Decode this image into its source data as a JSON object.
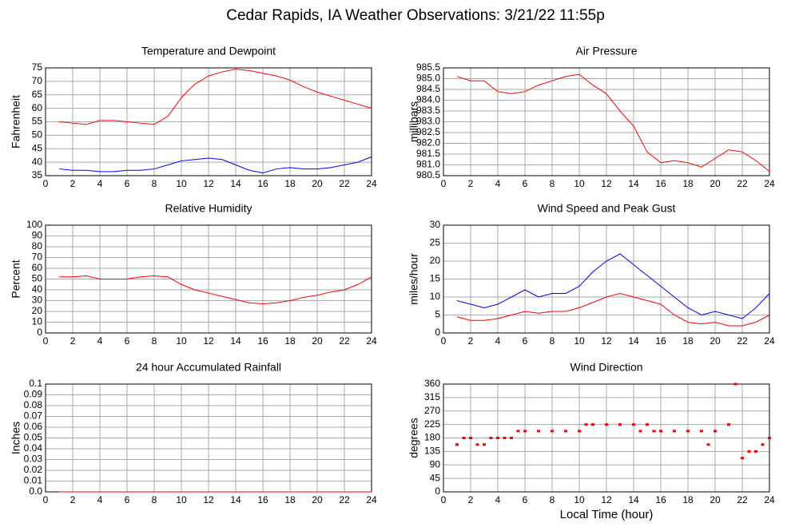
{
  "title": "Cedar Rapids, IA Weather Observations: 3/21/22 11:55p",
  "chart_data": [
    {
      "type": "line",
      "title": "Temperature and Dewpoint",
      "ylabel": "Fahrenheit",
      "x": [
        1,
        2,
        3,
        4,
        5,
        6,
        7,
        8,
        9,
        10,
        11,
        12,
        13,
        14,
        15,
        16,
        17,
        18,
        19,
        20,
        21,
        22,
        23,
        24
      ],
      "series": [
        {
          "name": "Temperature",
          "color": "#ff0000",
          "values": [
            55,
            54.5,
            54,
            55.5,
            55.5,
            55,
            54.5,
            54,
            57,
            64,
            69,
            72,
            73.5,
            74.5,
            74,
            73,
            72,
            70.5,
            68,
            66,
            64.5,
            63,
            61.5,
            60
          ]
        },
        {
          "name": "Dewpoint",
          "color": "#0000ff",
          "values": [
            37.5,
            37,
            37,
            36.5,
            36.5,
            37,
            37,
            37.5,
            39,
            40.5,
            41,
            41.5,
            41,
            39,
            37,
            36,
            37.5,
            38,
            37.5,
            37.5,
            38,
            39,
            40,
            42
          ]
        }
      ],
      "xlim": [
        0,
        24
      ],
      "xticks": [
        0,
        2,
        4,
        6,
        8,
        10,
        12,
        14,
        16,
        18,
        20,
        22,
        24
      ],
      "ylim": [
        35,
        75
      ],
      "yticks": [
        35,
        40,
        45,
        50,
        55,
        60,
        65,
        70,
        75
      ],
      "grid": true
    },
    {
      "type": "line",
      "title": "Air Pressure",
      "ylabel": "millibars",
      "x": [
        1,
        2,
        3,
        4,
        5,
        6,
        7,
        8,
        9,
        10,
        11,
        12,
        13,
        14,
        15,
        16,
        17,
        18,
        19,
        20,
        21,
        22,
        23,
        24
      ],
      "series": [
        {
          "name": "Pressure",
          "color": "#ff0000",
          "values": [
            985.1,
            984.9,
            984.9,
            984.4,
            984.3,
            984.4,
            984.7,
            984.9,
            985.1,
            985.2,
            984.7,
            984.3,
            983.5,
            982.8,
            981.6,
            981.1,
            981.2,
            981.1,
            980.9,
            981.3,
            981.7,
            981.6,
            981.2,
            980.7
          ]
        }
      ],
      "xlim": [
        0,
        24
      ],
      "xticks": [
        0,
        2,
        4,
        6,
        8,
        10,
        12,
        14,
        16,
        18,
        20,
        22,
        24
      ],
      "ylim": [
        980.5,
        985.5
      ],
      "yticks": [
        980.5,
        {
          "value": 981,
          "label": "981.0"
        },
        981.5,
        {
          "value": 982,
          "label": "982.0"
        },
        982.5,
        {
          "value": 983,
          "label": "983.0"
        },
        983.5,
        {
          "value": 984,
          "label": "984.0"
        },
        984.5,
        {
          "value": 985,
          "label": "985.0"
        },
        985.5
      ],
      "grid": true
    },
    {
      "type": "line",
      "title": "Relative Humidity",
      "ylabel": "Percent",
      "x": [
        1,
        2,
        3,
        4,
        5,
        6,
        7,
        8,
        9,
        10,
        11,
        12,
        13,
        14,
        15,
        16,
        17,
        18,
        19,
        20,
        21,
        22,
        23,
        24
      ],
      "series": [
        {
          "name": "Humidity",
          "color": "#ff0000",
          "values": [
            52,
            52,
            53,
            50,
            50,
            50,
            52,
            53,
            52,
            45,
            40,
            37,
            34,
            31,
            28,
            27,
            28,
            30,
            33,
            35,
            38,
            40,
            45,
            52
          ]
        }
      ],
      "xlim": [
        0,
        24
      ],
      "xticks": [
        0,
        2,
        4,
        6,
        8,
        10,
        12,
        14,
        16,
        18,
        20,
        22,
        24
      ],
      "ylim": [
        0,
        100
      ],
      "yticks": [
        0,
        10,
        20,
        30,
        40,
        50,
        60,
        70,
        80,
        90,
        100
      ],
      "grid": true
    },
    {
      "type": "line",
      "title": "Wind Speed and Peak Gust",
      "ylabel": "miles/hour",
      "x": [
        1,
        2,
        3,
        4,
        5,
        6,
        7,
        8,
        9,
        10,
        11,
        12,
        13,
        14,
        15,
        16,
        17,
        18,
        19,
        20,
        21,
        22,
        23,
        24
      ],
      "series": [
        {
          "name": "Wind Speed",
          "color": "#ff0000",
          "values": [
            4.5,
            3.5,
            3.5,
            4,
            5,
            6,
            5.5,
            6,
            6,
            7,
            8.5,
            10,
            11,
            10,
            9,
            8,
            5,
            3,
            2.5,
            3,
            2,
            2,
            3,
            5
          ]
        },
        {
          "name": "Peak Gust",
          "color": "#0000ff",
          "values": [
            9,
            8,
            7,
            8,
            10,
            12,
            10,
            11,
            11,
            13,
            17,
            20,
            22,
            19,
            16,
            13,
            10,
            7,
            5,
            6,
            5,
            4,
            7,
            11
          ]
        }
      ],
      "xlim": [
        0,
        24
      ],
      "xticks": [
        0,
        2,
        4,
        6,
        8,
        10,
        12,
        14,
        16,
        18,
        20,
        22,
        24
      ],
      "ylim": [
        0,
        30
      ],
      "yticks": [
        0,
        5,
        10,
        15,
        20,
        25,
        30
      ],
      "grid": true
    },
    {
      "type": "line",
      "title": "24 hour Accumulated Rainfall",
      "ylabel": "Inches",
      "x": [
        1,
        2,
        3,
        4,
        5,
        6,
        7,
        8,
        9,
        10,
        11,
        12,
        13,
        14,
        15,
        16,
        17,
        18,
        19,
        20,
        21,
        22,
        23,
        24
      ],
      "series": [
        {
          "name": "Rainfall",
          "color": "#ff0000",
          "values": [
            0,
            0,
            0,
            0,
            0,
            0,
            0,
            0,
            0,
            0,
            0,
            0,
            0,
            0,
            0,
            0,
            0,
            0,
            0,
            0,
            0,
            0,
            0,
            0
          ]
        }
      ],
      "xlim": [
        0,
        24
      ],
      "xticks": [
        0,
        2,
        4,
        6,
        8,
        10,
        12,
        14,
        16,
        18,
        20,
        22,
        24
      ],
      "ylim": [
        0,
        0.1
      ],
      "yticks": [
        {
          "value": 0,
          "label": "0.0"
        },
        0.01,
        0.02,
        0.03,
        0.04,
        0.05,
        0.06,
        0.07,
        0.08,
        0.09,
        0.1
      ],
      "grid": true
    },
    {
      "type": "scatter",
      "title": "Wind Direction",
      "ylabel": "degrees",
      "xlabel": "Local Time (hour)",
      "x": [
        1,
        1.5,
        2,
        2.5,
        3,
        3.5,
        4,
        4.5,
        5,
        5.5,
        6,
        7,
        8,
        9,
        10,
        10.5,
        11,
        12,
        13,
        14,
        14.5,
        15,
        15.5,
        16,
        17,
        18,
        19,
        19.5,
        20,
        21,
        21.5,
        22,
        22.5,
        23,
        23.5,
        24
      ],
      "series": [
        {
          "name": "Direction",
          "color": "#ff0000",
          "values": [
            158,
            180,
            180,
            158,
            158,
            180,
            180,
            180,
            180,
            203,
            203,
            203,
            203,
            203,
            203,
            225,
            225,
            225,
            225,
            225,
            203,
            225,
            203,
            203,
            203,
            203,
            203,
            158,
            203,
            225,
            360,
            113,
            135,
            135,
            158,
            180
          ]
        }
      ],
      "xlim": [
        0,
        24
      ],
      "xticks": [
        0,
        2,
        4,
        6,
        8,
        10,
        12,
        14,
        16,
        18,
        20,
        22,
        24
      ],
      "ylim": [
        0,
        360
      ],
      "yticks": [
        0,
        45,
        90,
        135,
        180,
        225,
        270,
        315,
        360
      ],
      "grid": true
    }
  ]
}
